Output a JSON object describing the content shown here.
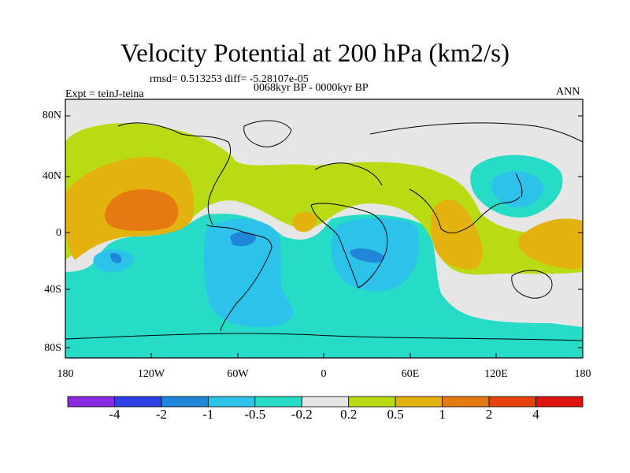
{
  "title": "Velocity Potential at 200 hPa (km2/s)",
  "stats": "rmsd= 0.513253 diff= -5.28107e-05",
  "experiment": "Expt = teinJ-teina",
  "period": "0068kyr BP - 0000kyr BP",
  "season": "ANN",
  "lat_labels": [
    "80N",
    "40N",
    "0",
    "40S",
    "80S"
  ],
  "lon_labels": [
    "180",
    "120W",
    "60W",
    "0",
    "60E",
    "120E",
    "180"
  ],
  "colorbar": {
    "labels": [
      "-4",
      "-2",
      "-1",
      "-0.5",
      "-0.2",
      "0.2",
      "0.5",
      "1",
      "2",
      "4"
    ],
    "colors": [
      "#8a2be2",
      "#2e3fe6",
      "#1f86d9",
      "#2cc2ea",
      "#26dcc6",
      "#e6e6e6",
      "#b8db14",
      "#e4b20e",
      "#e67a12",
      "#e8420c",
      "#e0140e"
    ]
  }
}
